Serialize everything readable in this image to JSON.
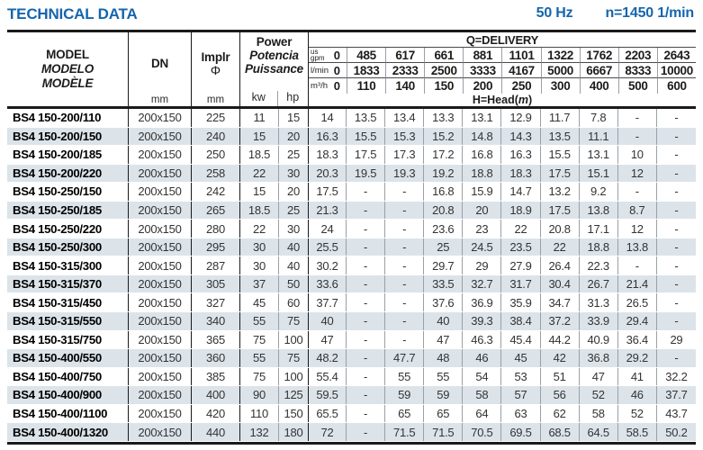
{
  "page": {
    "title": "TECHNICAL DATA",
    "frequency": "50 Hz",
    "speed": "n=1450 1/min"
  },
  "colors": {
    "accent_blue": "#1565AE",
    "row_stripe": "#DCE4EA",
    "grid_dark": "#1A1A1A",
    "grid_light": "#98A0A8"
  },
  "table": {
    "header": {
      "model_lines": [
        "MODEL",
        "MODELO",
        "MODÈLE"
      ],
      "dn": {
        "label": "DN",
        "unit": "mm"
      },
      "impeller": {
        "label": "Implr",
        "symbol": "Φ",
        "unit": "mm"
      },
      "power": {
        "lines": [
          "Power",
          "Potencia",
          "Puissance"
        ],
        "unit_kw": "kw",
        "unit_hp": "hp"
      },
      "delivery_title": "Q=DELIVERY",
      "head_label": {
        "prefix": "H=Head(",
        "variable": "m",
        "suffix": ")"
      }
    },
    "delivery": {
      "gpm": {
        "label_top": "us",
        "label_bottom": "gpm",
        "values": [
          "0",
          "485",
          "617",
          "661",
          "881",
          "1101",
          "1322",
          "1762",
          "2203",
          "2643"
        ]
      },
      "lmin": {
        "label": "l/min",
        "values": [
          "0",
          "1833",
          "2333",
          "2500",
          "3333",
          "4167",
          "5000",
          "6667",
          "8333",
          "10000"
        ]
      },
      "m3h": {
        "label": "m³/h",
        "values": [
          "0",
          "110",
          "140",
          "150",
          "200",
          "250",
          "300",
          "400",
          "500",
          "600"
        ]
      }
    },
    "rows": [
      {
        "model": "BS4 150-200/110",
        "dn": "200x150",
        "impeller": "225",
        "kw": "11",
        "hp": "15",
        "heads": [
          "14",
          "13.5",
          "13.4",
          "13.3",
          "13.1",
          "12.9",
          "11.7",
          "7.8",
          "-",
          "-"
        ]
      },
      {
        "model": "BS4 150-200/150",
        "dn": "200x150",
        "impeller": "240",
        "kw": "15",
        "hp": "20",
        "heads": [
          "16.3",
          "15.5",
          "15.3",
          "15.2",
          "14.8",
          "14.3",
          "13.5",
          "11.1",
          "-",
          "-"
        ]
      },
      {
        "model": "BS4 150-200/185",
        "dn": "200x150",
        "impeller": "250",
        "kw": "18.5",
        "hp": "25",
        "heads": [
          "18.3",
          "17.5",
          "17.3",
          "17.2",
          "16.8",
          "16.3",
          "15.5",
          "13.1",
          "10",
          "-"
        ]
      },
      {
        "model": "BS4 150-200/220",
        "dn": "200x150",
        "impeller": "258",
        "kw": "22",
        "hp": "30",
        "heads": [
          "20.3",
          "19.5",
          "19.3",
          "19.2",
          "18.8",
          "18.3",
          "17.5",
          "15.1",
          "12",
          "-"
        ]
      },
      {
        "model": "BS4 150-250/150",
        "dn": "200x150",
        "impeller": "242",
        "kw": "15",
        "hp": "20",
        "heads": [
          "17.5",
          "-",
          "-",
          "16.8",
          "15.9",
          "14.7",
          "13.2",
          "9.2",
          "-",
          "-"
        ]
      },
      {
        "model": "BS4 150-250/185",
        "dn": "200x150",
        "impeller": "265",
        "kw": "18.5",
        "hp": "25",
        "heads": [
          "21.3",
          "-",
          "-",
          "20.8",
          "20",
          "18.9",
          "17.5",
          "13.8",
          "8.7",
          "-"
        ]
      },
      {
        "model": "BS4 150-250/220",
        "dn": "200x150",
        "impeller": "280",
        "kw": "22",
        "hp": "30",
        "heads": [
          "24",
          "-",
          "-",
          "23.6",
          "23",
          "22",
          "20.8",
          "17.1",
          "12",
          "-"
        ]
      },
      {
        "model": "BS4 150-250/300",
        "dn": "200x150",
        "impeller": "295",
        "kw": "30",
        "hp": "40",
        "heads": [
          "25.5",
          "-",
          "-",
          "25",
          "24.5",
          "23.5",
          "22",
          "18.8",
          "13.8",
          "-"
        ]
      },
      {
        "model": "BS4 150-315/300",
        "dn": "200x150",
        "impeller": "287",
        "kw": "30",
        "hp": "40",
        "heads": [
          "30.2",
          "-",
          "-",
          "29.7",
          "29",
          "27.9",
          "26.4",
          "22.3",
          "-",
          "-"
        ]
      },
      {
        "model": "BS4 150-315/370",
        "dn": "200x150",
        "impeller": "305",
        "kw": "37",
        "hp": "50",
        "heads": [
          "33.6",
          "-",
          "-",
          "33.5",
          "32.7",
          "31.7",
          "30.4",
          "26.7",
          "21.4",
          "-"
        ]
      },
      {
        "model": "BS4 150-315/450",
        "dn": "200x150",
        "impeller": "327",
        "kw": "45",
        "hp": "60",
        "heads": [
          "37.7",
          "-",
          "-",
          "37.6",
          "36.9",
          "35.9",
          "34.7",
          "31.3",
          "26.5",
          "-"
        ]
      },
      {
        "model": "BS4 150-315/550",
        "dn": "200x150",
        "impeller": "340",
        "kw": "55",
        "hp": "75",
        "heads": [
          "40",
          "-",
          "-",
          "40",
          "39.3",
          "38.4",
          "37.2",
          "33.9",
          "29.4",
          "-"
        ]
      },
      {
        "model": "BS4 150-315/750",
        "dn": "200x150",
        "impeller": "365",
        "kw": "75",
        "hp": "100",
        "heads": [
          "47",
          "-",
          "-",
          "47",
          "46.3",
          "45.4",
          "44.2",
          "40.9",
          "36.4",
          "29"
        ]
      },
      {
        "model": "BS4 150-400/550",
        "dn": "200x150",
        "impeller": "360",
        "kw": "55",
        "hp": "75",
        "heads": [
          "48.2",
          "-",
          "47.7",
          "48",
          "46",
          "45",
          "42",
          "36.8",
          "29.2",
          "-"
        ]
      },
      {
        "model": "BS4 150-400/750",
        "dn": "200x150",
        "impeller": "385",
        "kw": "75",
        "hp": "100",
        "heads": [
          "55.4",
          "-",
          "55",
          "55",
          "54",
          "53",
          "51",
          "47",
          "41",
          "32.2"
        ]
      },
      {
        "model": "BS4 150-400/900",
        "dn": "200x150",
        "impeller": "400",
        "kw": "90",
        "hp": "125",
        "heads": [
          "59.5",
          "-",
          "59",
          "59",
          "58",
          "57",
          "56",
          "52",
          "46",
          "37.7"
        ]
      },
      {
        "model": "BS4 150-400/1100",
        "dn": "200x150",
        "impeller": "420",
        "kw": "110",
        "hp": "150",
        "heads": [
          "65.5",
          "-",
          "65",
          "65",
          "64",
          "63",
          "62",
          "58",
          "52",
          "43.7"
        ]
      },
      {
        "model": "BS4 150-400/1320",
        "dn": "200x150",
        "impeller": "440",
        "kw": "132",
        "hp": "180",
        "heads": [
          "72",
          "-",
          "71.5",
          "71.5",
          "70.5",
          "69.5",
          "68.5",
          "64.5",
          "58.5",
          "50.2"
        ]
      }
    ]
  }
}
